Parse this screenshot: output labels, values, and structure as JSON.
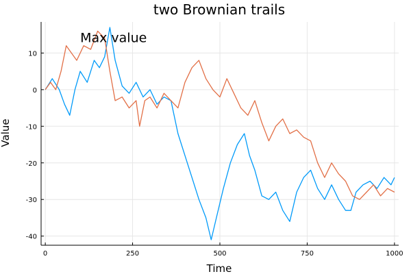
{
  "chart_data": {
    "type": "line",
    "title": "two Brownian trails",
    "xlabel": "Time",
    "ylabel": "Value",
    "xlim": [
      -12,
      1012
    ],
    "ylim": [
      -42.5,
      18.5
    ],
    "xticks": [
      0,
      250,
      500,
      750,
      1000
    ],
    "yticks": [
      10,
      0,
      -10,
      -20,
      -30,
      -40
    ],
    "grid": true,
    "legend": "none",
    "annotations": [
      {
        "text": "Max value",
        "x": 100,
        "y": 14.5
      }
    ],
    "series": [
      {
        "color": "#009af9",
        "x": [
          0,
          20,
          40,
          55,
          70,
          85,
          100,
          120,
          140,
          155,
          170,
          185,
          200,
          220,
          240,
          260,
          280,
          300,
          320,
          340,
          360,
          380,
          400,
          420,
          440,
          460,
          475,
          490,
          510,
          530,
          550,
          570,
          585,
          600,
          620,
          640,
          660,
          680,
          700,
          720,
          740,
          760,
          780,
          800,
          820,
          840,
          860,
          875,
          890,
          910,
          930,
          950,
          970,
          990,
          1000
        ],
        "y": [
          0,
          3,
          0,
          -4,
          -7,
          0,
          5,
          2,
          8,
          6,
          9,
          17,
          8,
          1,
          -1,
          2,
          -2,
          0,
          -4,
          -2,
          -3,
          -12,
          -18,
          -24,
          -30,
          -35,
          -41,
          -35,
          -27,
          -20,
          -15,
          -12,
          -18,
          -22,
          -29,
          -30,
          -28,
          -33,
          -36,
          -28,
          -24,
          -22,
          -27,
          -30,
          -26,
          -30,
          -33,
          -33,
          -28,
          -26,
          -25,
          -27,
          -24,
          -26,
          -24
        ]
      },
      {
        "color": "#e26f46",
        "x": [
          0,
          15,
          30,
          45,
          60,
          75,
          90,
          110,
          130,
          150,
          170,
          185,
          200,
          220,
          240,
          260,
          270,
          285,
          300,
          320,
          340,
          360,
          380,
          400,
          420,
          440,
          460,
          480,
          500,
          520,
          540,
          560,
          580,
          600,
          620,
          640,
          660,
          680,
          700,
          720,
          740,
          760,
          780,
          800,
          820,
          840,
          860,
          880,
          900,
          920,
          940,
          960,
          980,
          1000
        ],
        "y": [
          0,
          2,
          0,
          5,
          12,
          10,
          8,
          12,
          11,
          16,
          14,
          5,
          -3,
          -2,
          -5,
          -3,
          -10,
          -3,
          -2,
          -5,
          -1,
          -3,
          -5,
          2,
          6,
          8,
          3,
          0,
          -2,
          3,
          -1,
          -5,
          -7,
          -3,
          -9,
          -14,
          -10,
          -8,
          -12,
          -11,
          -13,
          -14,
          -20,
          -24,
          -20,
          -23,
          -25,
          -29,
          -30,
          -28,
          -26,
          -29,
          -27,
          -28
        ]
      }
    ]
  }
}
